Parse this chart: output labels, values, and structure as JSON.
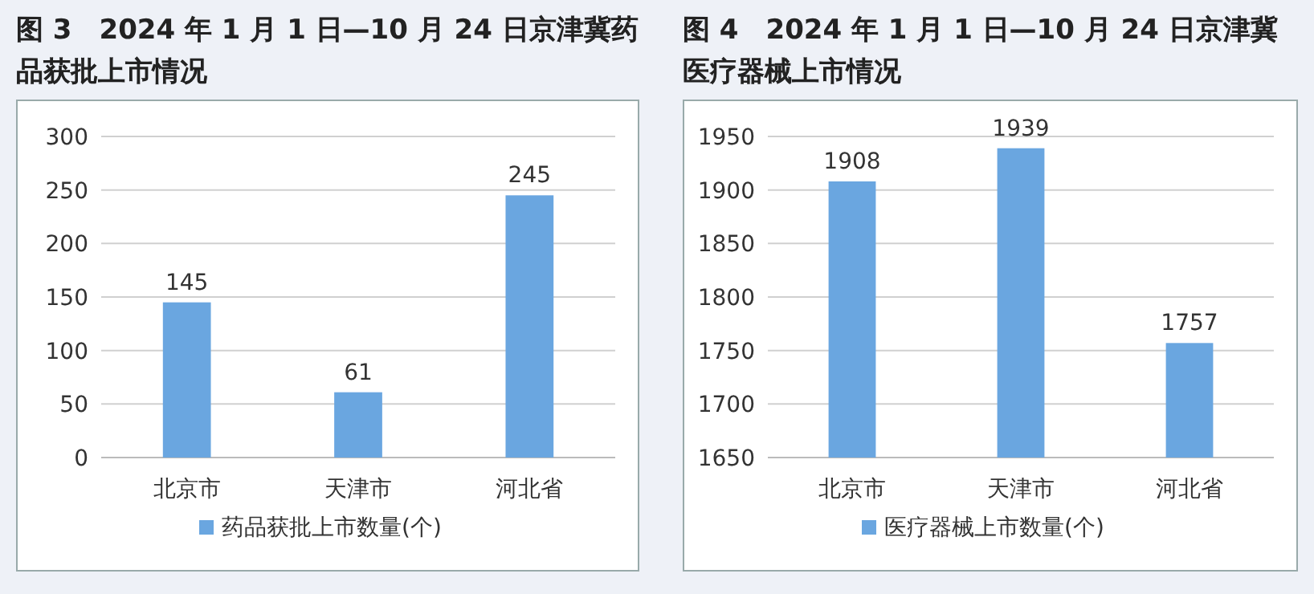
{
  "chart_data": [
    {
      "type": "bar",
      "title": "图 3　2024 年 1 月 1 日—10 月 24 日京津冀药品获批上市情况",
      "categories": [
        "北京市",
        "天津市",
        "河北省"
      ],
      "series": [
        {
          "name": "药品获批上市数量(个)",
          "color": "#6aa6e0",
          "values": [
            145,
            61,
            245
          ]
        }
      ],
      "ylim": [
        0,
        300
      ],
      "yticks": [
        0,
        50,
        100,
        150,
        200,
        250,
        300
      ],
      "grid": "y",
      "legend": "bottom",
      "data_labels": true
    },
    {
      "type": "bar",
      "title": "图 4　2024 年 1 月 1 日—10 月 24 日京津冀医疗器械上市情况",
      "categories": [
        "北京市",
        "天津市",
        "河北省"
      ],
      "series": [
        {
          "name": "医疗器械上市数量(个)",
          "color": "#6aa6e0",
          "values": [
            1908,
            1939,
            1757
          ]
        }
      ],
      "ylim": [
        1650,
        1950
      ],
      "yticks": [
        1650,
        1700,
        1750,
        1800,
        1850,
        1900,
        1950
      ],
      "grid": "y",
      "legend": "bottom",
      "data_labels": true
    }
  ]
}
